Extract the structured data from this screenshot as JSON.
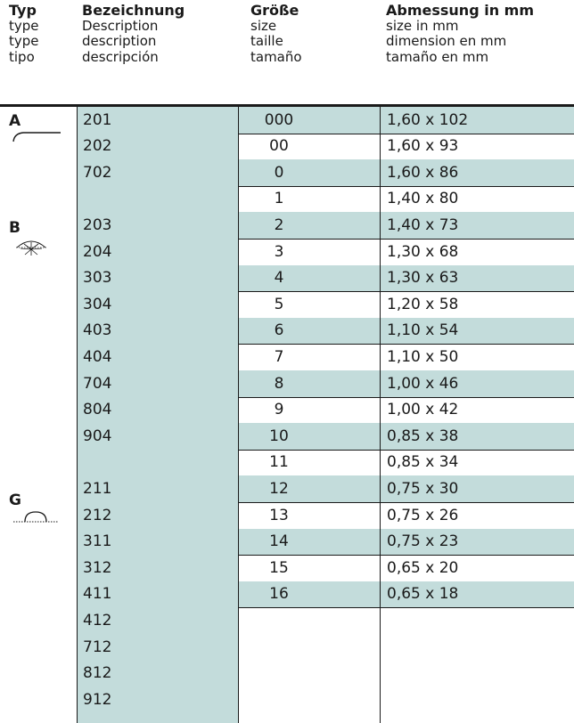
{
  "header": {
    "typ": [
      "Typ",
      "type",
      "type",
      "tipo"
    ],
    "bezeichnung": [
      "Bezeichnung",
      "Description",
      "description",
      "descripción"
    ],
    "groesse": [
      "Größe",
      "size",
      "taille",
      "tamaño"
    ],
    "abmessung": [
      "Abmessung in mm",
      "size in mm",
      "dimension en mm",
      "tamaño en mm"
    ]
  },
  "types": [
    {
      "letter": "A",
      "icon": "curved-needle-icon"
    },
    {
      "letter": "B",
      "icon": "radiant-curve-icon"
    },
    {
      "letter": "G",
      "icon": "dotted-arc-icon"
    }
  ],
  "bezeichnung": [
    "201",
    "202",
    "702",
    "",
    "203",
    "204",
    "303",
    "304",
    "403",
    "404",
    "704",
    "804",
    "904",
    "",
    "211",
    "212",
    "311",
    "312",
    "411",
    "412",
    "712",
    "812",
    "912"
  ],
  "sizes": [
    {
      "groesse": "000",
      "abmessung": "1,60 x 102"
    },
    {
      "groesse": "00",
      "abmessung": "1,60 x 93"
    },
    {
      "groesse": "0",
      "abmessung": "1,60 x 86"
    },
    {
      "groesse": "1",
      "abmessung": "1,40 x 80"
    },
    {
      "groesse": "2",
      "abmessung": "1,40 x 73"
    },
    {
      "groesse": "3",
      "abmessung": "1,30 x 68"
    },
    {
      "groesse": "4",
      "abmessung": "1,30 x 63"
    },
    {
      "groesse": "5",
      "abmessung": "1,20 x 58"
    },
    {
      "groesse": "6",
      "abmessung": "1,10 x 54"
    },
    {
      "groesse": "7",
      "abmessung": "1,10 x 50"
    },
    {
      "groesse": "8",
      "abmessung": "1,00 x 46"
    },
    {
      "groesse": "9",
      "abmessung": "1,00 x 42"
    },
    {
      "groesse": "10",
      "abmessung": "0,85 x 38"
    },
    {
      "groesse": "11",
      "abmessung": "0,85 x 34"
    },
    {
      "groesse": "12",
      "abmessung": "0,75 x 30"
    },
    {
      "groesse": "13",
      "abmessung": "0,75 x 26"
    },
    {
      "groesse": "14",
      "abmessung": "0,75 x 23"
    },
    {
      "groesse": "15",
      "abmessung": "0,65 x 20"
    },
    {
      "groesse": "16",
      "abmessung": "0,65 x 18"
    }
  ],
  "colors": {
    "teal": "#c3dcdb",
    "ink": "#1a1a1a"
  }
}
